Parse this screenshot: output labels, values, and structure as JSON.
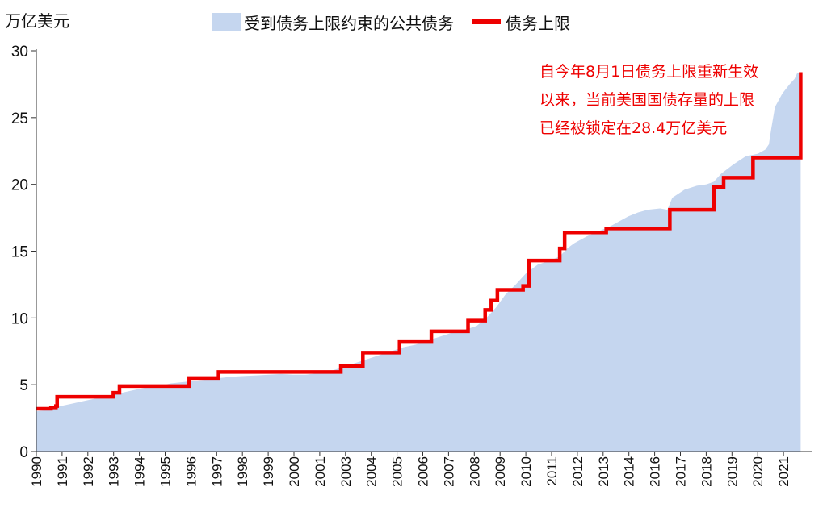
{
  "chart_data": {
    "type": "area",
    "title": "",
    "ylabel": "万亿美元",
    "xlabel": "",
    "ylim": [
      0,
      30
    ],
    "xlim": [
      1990,
      2021.6
    ],
    "yticks": [
      0,
      5,
      10,
      15,
      20,
      25,
      30
    ],
    "xticks": [
      "1990",
      "1991",
      "1992",
      "1993",
      "1994",
      "1995",
      "1996",
      "1997",
      "1998",
      "1999",
      "2000",
      "2001",
      "2003",
      "2004",
      "2005",
      "2006",
      "2007",
      "2008",
      "2009",
      "2010",
      "2011",
      "2012",
      "2013",
      "2014",
      "2016",
      "2017",
      "2018",
      "2019",
      "2020",
      "2021"
    ],
    "grid": false,
    "legend_position": "top",
    "series": [
      {
        "name": "受到债务上限约束的公共债务",
        "kind": "area",
        "color": "#c5d6ef",
        "x": [
          1990.0,
          1990.4,
          1990.75,
          1991.0,
          1991.5,
          1992.0,
          1992.5,
          1993.0,
          1993.5,
          1994.0,
          1994.5,
          1995.0,
          1995.5,
          1996.0,
          1996.5,
          1997.0,
          1997.5,
          1998.0,
          1998.5,
          1999.0,
          1999.5,
          2000.0,
          2000.5,
          2001.0,
          2001.5,
          2002.0,
          2002.5,
          2003.0,
          2003.5,
          2004.0,
          2004.5,
          2005.0,
          2005.5,
          2006.0,
          2006.5,
          2007.0,
          2007.5,
          2008.0,
          2008.4,
          2008.8,
          2009.2,
          2009.6,
          2010.0,
          2010.5,
          2011.0,
          2011.4,
          2011.7,
          2012.0,
          2012.5,
          2013.0,
          2013.4,
          2013.8,
          2014.2,
          2014.6,
          2015.0,
          2015.5,
          2015.8,
          2016.0,
          2016.5,
          2017.0,
          2017.4,
          2017.7,
          2018.0,
          2018.5,
          2019.0,
          2019.5,
          2019.8,
          2019.95,
          2020.05,
          2020.2,
          2020.5,
          2020.8,
          2021.0,
          2021.1,
          2021.25
        ],
        "values": [
          3.0,
          3.1,
          3.3,
          3.4,
          3.6,
          3.8,
          4.0,
          4.2,
          4.4,
          4.6,
          4.8,
          4.9,
          5.1,
          5.2,
          5.3,
          5.4,
          5.5,
          5.6,
          5.65,
          5.7,
          5.75,
          5.8,
          5.75,
          5.75,
          5.85,
          6.0,
          6.3,
          6.6,
          6.9,
          7.2,
          7.5,
          7.8,
          8.0,
          8.3,
          8.6,
          8.9,
          9.1,
          9.4,
          10.0,
          10.8,
          11.8,
          12.5,
          13.3,
          14.0,
          14.3,
          14.6,
          15.2,
          15.6,
          16.1,
          16.5,
          16.8,
          17.2,
          17.6,
          17.9,
          18.1,
          18.2,
          18.1,
          19.0,
          19.6,
          19.9,
          20.0,
          20.2,
          20.8,
          21.5,
          22.1,
          22.3,
          22.6,
          23.0,
          24.2,
          25.8,
          26.8,
          27.5,
          27.9,
          28.3,
          28.4
        ]
      },
      {
        "name": "债务上限",
        "kind": "step",
        "color": "#ee0000",
        "x": [
          1990.0,
          1990.6,
          1990.8,
          1990.85,
          1993.15,
          1993.4,
          1993.55,
          1996.25,
          1997.45,
          2002.45,
          2003.35,
          2004.85,
          2006.15,
          2007.65,
          2008.35,
          2008.6,
          2008.85,
          2009.9,
          2010.15,
          2011.4,
          2011.6,
          2013.0,
          2013.3,
          2014.0,
          2015.9,
          2017.7,
          2018.1,
          2019.3,
          2020.5,
          2021.1,
          2021.25
        ],
        "values": [
          3.2,
          3.3,
          3.4,
          4.1,
          4.4,
          4.9,
          4.9,
          5.5,
          5.95,
          6.4,
          7.4,
          8.2,
          9.0,
          9.8,
          10.6,
          11.3,
          12.1,
          12.4,
          14.3,
          15.2,
          16.4,
          16.4,
          16.7,
          16.7,
          18.1,
          19.8,
          20.5,
          22.0,
          22.0,
          22.0,
          28.4
        ]
      }
    ],
    "annotation": {
      "lines": [
        "自今年8月1日债务上限重新生效",
        "以来，当前美国国债存量的上限",
        "已经被锁定在28.4万亿美元"
      ],
      "color": "#ee0000"
    }
  },
  "legend": {
    "area_label": "受到债务上限约束的公共债务",
    "line_label": "债务上限"
  }
}
